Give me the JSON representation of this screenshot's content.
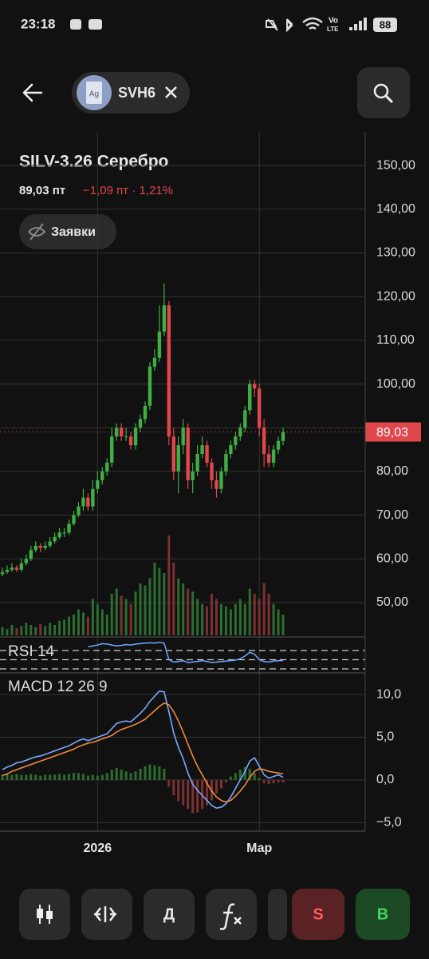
{
  "status": {
    "time": "23:18",
    "network": [
      "Vo",
      "LTE"
    ],
    "battery": "88"
  },
  "header": {
    "icon": "Ag",
    "ticker": "SVH6"
  },
  "instrument": {
    "title": "SILV-3.26 Серебро",
    "price": "89,03 пт",
    "change": "−1,09 пт · 1,21%"
  },
  "orders_button": "Заявки",
  "chart_data": [
    {
      "type": "candlestick",
      "categories": [
        null,
        null,
        null,
        null,
        null,
        null,
        null,
        null,
        null,
        null,
        null,
        null,
        null,
        null,
        null,
        null,
        null,
        null,
        null,
        null,
        "2026",
        null,
        null,
        null,
        null,
        null,
        null,
        null,
        null,
        null,
        null,
        null,
        null,
        null,
        null,
        null,
        null,
        null,
        null,
        null,
        null,
        null,
        null,
        null,
        null,
        null,
        null,
        null,
        null,
        null,
        null,
        null,
        null,
        null,
        "Мар",
        null,
        null,
        null,
        null,
        null
      ],
      "open": [
        56.5,
        57,
        57.5,
        58,
        57.5,
        59,
        60,
        62,
        63,
        62.5,
        63,
        64,
        65,
        66,
        66,
        68,
        70,
        72,
        74,
        72,
        76,
        78,
        80,
        82,
        88,
        90,
        88,
        88,
        86,
        90,
        92,
        95,
        104,
        106,
        112,
        118,
        88,
        80,
        86,
        90,
        78,
        80,
        84,
        86,
        82,
        78,
        76,
        80,
        84,
        86,
        88,
        90,
        94,
        100,
        99,
        90,
        84,
        82,
        85,
        87
      ],
      "high": [
        58,
        58.5,
        59,
        58.5,
        60,
        61,
        63,
        64,
        63.5,
        64,
        65,
        66,
        67,
        67,
        69,
        71,
        73,
        76,
        75,
        78,
        80,
        81,
        83,
        90,
        91,
        91,
        90,
        89,
        91,
        93,
        96,
        105,
        108,
        118,
        123,
        119,
        90,
        88,
        92,
        91,
        82,
        86,
        88,
        87,
        83,
        80,
        81,
        85,
        87,
        89,
        91,
        95,
        101,
        101,
        100,
        92,
        86,
        86,
        88,
        90
      ],
      "low": [
        56,
        56.5,
        57,
        57,
        57,
        58.5,
        59.5,
        61.5,
        61.5,
        62,
        62.5,
        63.5,
        64.5,
        65,
        65.5,
        67.5,
        69.5,
        71,
        71,
        71,
        75,
        77,
        79,
        81,
        87,
        87,
        87,
        85,
        85,
        89,
        91,
        94,
        103,
        105,
        111,
        86,
        78,
        75,
        84,
        76,
        75,
        79,
        83,
        81,
        76,
        74,
        75,
        79,
        83,
        85,
        87,
        89,
        93,
        97,
        88,
        81,
        81,
        81,
        84,
        86
      ],
      "close": [
        57,
        57.5,
        58,
        57.5,
        59,
        60,
        62,
        63,
        62.5,
        63,
        64,
        65,
        66,
        66,
        68,
        70,
        72,
        74,
        72,
        76,
        78,
        80,
        82,
        88,
        90,
        88,
        88,
        86,
        90,
        92,
        95,
        104,
        106,
        112,
        118,
        88,
        80,
        86,
        90,
        78,
        80,
        84,
        86,
        82,
        78,
        76,
        80,
        84,
        86,
        88,
        90,
        94,
        100,
        99,
        90,
        84,
        82,
        85,
        87,
        89.03
      ],
      "ylim": [
        42.5,
        157.7
      ],
      "yticks": [
        {
          "value": 150,
          "label": "150,00"
        },
        {
          "value": 140,
          "label": "140,00"
        },
        {
          "value": 130,
          "label": "130,00"
        },
        {
          "value": 120,
          "label": "120,00"
        },
        {
          "value": 110,
          "label": "110,00"
        },
        {
          "value": 100,
          "label": "100,00"
        },
        {
          "value": 90,
          "label": "90,00"
        },
        {
          "value": 80,
          "label": "80,00"
        },
        {
          "value": 70,
          "label": "70,00"
        },
        {
          "value": 60,
          "label": "60,00"
        },
        {
          "value": 50,
          "label": "50,00"
        }
      ],
      "grid": true,
      "up_color": "#3fae45",
      "down_color": "#e0474c",
      "last_price": {
        "value": 89.03,
        "label": "89,03"
      },
      "last_price_color": "#e0474c"
    },
    {
      "type": "bar",
      "values": [
        8,
        6,
        10,
        7,
        9,
        12,
        10,
        8,
        11,
        9,
        12,
        10,
        14,
        15,
        18,
        20,
        25,
        22,
        18,
        35,
        30,
        25,
        20,
        40,
        45,
        38,
        35,
        30,
        42,
        50,
        48,
        55,
        70,
        65,
        60,
        96,
        70,
        55,
        50,
        45,
        42,
        35,
        30,
        28,
        40,
        35,
        30,
        28,
        25,
        30,
        35,
        30,
        45,
        40,
        35,
        50,
        40,
        30,
        25,
        20
      ],
      "ylim": [
        0,
        100
      ],
      "up_color": "#2c6e30",
      "down_color": "#7c3032"
    },
    {
      "type": "line",
      "title": "RSI 14",
      "values": [
        null,
        null,
        null,
        null,
        null,
        null,
        null,
        null,
        null,
        null,
        null,
        null,
        null,
        null,
        null,
        null,
        null,
        null,
        78,
        80,
        82,
        85,
        84,
        82,
        80,
        81,
        83,
        82,
        84,
        85,
        86,
        87,
        86,
        88,
        86,
        50,
        45,
        46,
        48,
        44,
        45,
        46,
        48,
        46,
        44,
        45,
        46,
        47,
        48,
        49,
        52,
        58,
        66,
        62,
        50,
        46,
        45,
        47,
        48,
        48
      ],
      "ylim": [
        21.3,
        94.3
      ],
      "levels": [
        70,
        50,
        30
      ],
      "color": "#6fa8ff"
    },
    {
      "type": "macd",
      "title": "MACD 12 26 9",
      "series": [
        {
          "color": "#7aa9ff",
          "values": [
            1.2,
            1.5,
            1.7,
            2.0,
            2.1,
            2.3,
            2.5,
            2.7,
            2.8,
            3.0,
            3.2,
            3.4,
            3.6,
            3.8,
            4.0,
            4.3,
            4.6,
            4.8,
            4.6,
            4.8,
            5.0,
            5.2,
            5.4,
            6.0,
            6.6,
            6.8,
            6.9,
            6.8,
            7.3,
            7.8,
            8.4,
            9.2,
            9.8,
            10.4,
            10.3,
            8.0,
            5.5,
            3.8,
            2.5,
            0.8,
            -0.5,
            -1.2,
            -1.8,
            -2.4,
            -3.0,
            -3.3,
            -3.2,
            -2.8,
            -2.0,
            -1.0,
            0.0,
            1.0,
            2.2,
            2.6,
            1.6,
            0.6,
            0.2,
            0.4,
            0.6,
            0.3
          ]
        },
        {
          "color": "#f08a3c",
          "values": [
            0.5,
            0.7,
            1.0,
            1.2,
            1.4,
            1.6,
            1.8,
            2.0,
            2.2,
            2.4,
            2.6,
            2.8,
            3.0,
            3.2,
            3.4,
            3.6,
            3.9,
            4.1,
            4.3,
            4.4,
            4.6,
            4.8,
            5.0,
            5.2,
            5.6,
            5.9,
            6.1,
            6.3,
            6.5,
            6.8,
            7.1,
            7.6,
            8.1,
            8.6,
            9.0,
            8.8,
            8.0,
            6.9,
            5.6,
            4.2,
            2.8,
            1.6,
            0.6,
            -0.4,
            -1.3,
            -2.0,
            -2.4,
            -2.6,
            -2.4,
            -1.9,
            -1.3,
            -0.6,
            0.3,
            1.0,
            1.3,
            1.2,
            1.0,
            0.9,
            0.8,
            0.7
          ]
        }
      ],
      "histogram": {
        "values": [
          0.6,
          0.7,
          0.6,
          0.7,
          0.6,
          0.6,
          0.7,
          0.6,
          0.5,
          0.6,
          0.6,
          0.6,
          0.7,
          0.6,
          0.7,
          0.8,
          0.8,
          0.7,
          0.5,
          0.6,
          0.5,
          0.6,
          0.8,
          1.2,
          1.4,
          1.2,
          1.0,
          0.8,
          1.0,
          1.3,
          1.6,
          1.8,
          1.7,
          1.6,
          1.3,
          -0.8,
          -1.8,
          -2.5,
          -3.0,
          -3.4,
          -3.9,
          -3.8,
          -3.4,
          -3.0,
          -2.4,
          -1.6,
          -1.0,
          -0.3,
          0.4,
          0.8,
          1.2,
          1.5,
          1.3,
          0.8,
          0.2,
          -0.4,
          -0.5,
          -0.4,
          -0.3,
          -0.3
        ],
        "up_color": "#2c6e30",
        "down_color": "#7c3032"
      },
      "ylim": [
        -6,
        12.25
      ],
      "yticks": [
        {
          "value": 10,
          "label": "10,0"
        },
        {
          "value": 5,
          "label": "5,0"
        },
        {
          "value": 0,
          "label": "0,0"
        },
        {
          "value": -5,
          "label": "−5,0"
        }
      ]
    }
  ],
  "toolbar": {
    "indicators": "Д",
    "sell": "S",
    "buy": "B"
  }
}
